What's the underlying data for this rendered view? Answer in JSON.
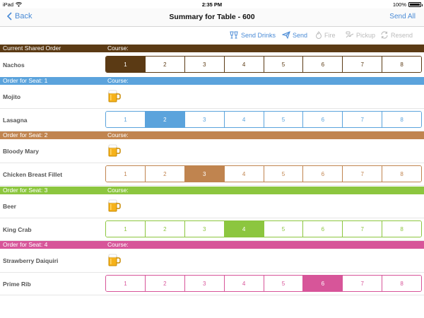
{
  "status_bar": {
    "device": "iPad",
    "time": "2:35 PM",
    "battery": "100%",
    "battery_level": 1.0
  },
  "nav": {
    "back_label": "Back",
    "title": "Summary for Table  - 600",
    "send_all_label": "Send All"
  },
  "toolbar": {
    "send_drinks": "Send Drinks",
    "send": "Send",
    "fire": "Fire",
    "pickup": "Pickup",
    "resend": "Resend"
  },
  "colors": {
    "shared": "#5b3a14",
    "seat1": "#5ba3dc",
    "seat2": "#c0844f",
    "seat3": "#8cc63f",
    "seat4": "#d75599",
    "accent": "#4a8bd6"
  },
  "sections": [
    {
      "label": "Current Shared Order",
      "course_label": "Course:",
      "items": [
        {
          "name": "Nachos",
          "courses": [
            "1",
            "2",
            "3",
            "4",
            "5",
            "6",
            "7",
            "8"
          ],
          "selected_course": "1"
        }
      ]
    },
    {
      "label": "Order for Seat: 1",
      "course_label": "Course:",
      "items": [
        {
          "name": "Mojito",
          "icon": "beer-mug-icon"
        },
        {
          "name": "Lasagna",
          "courses": [
            "1",
            "2",
            "3",
            "4",
            "5",
            "6",
            "7",
            "8"
          ],
          "selected_course": "2"
        }
      ]
    },
    {
      "label": "Order for Seat: 2",
      "course_label": "Course:",
      "items": [
        {
          "name": "Bloody Mary",
          "icon": "beer-mug-icon"
        },
        {
          "name": "Chicken Breast Fillet",
          "courses": [
            "1",
            "2",
            "3",
            "4",
            "5",
            "6",
            "7",
            "8"
          ],
          "selected_course": "3"
        }
      ]
    },
    {
      "label": "Order for Seat: 3",
      "course_label": "Course:",
      "items": [
        {
          "name": "Beer",
          "icon": "beer-mug-icon"
        },
        {
          "name": "King Crab",
          "courses": [
            "1",
            "2",
            "3",
            "4",
            "5",
            "6",
            "7",
            "8"
          ],
          "selected_course": "4"
        }
      ]
    },
    {
      "label": "Order for Seat: 4",
      "course_label": "Course:",
      "items": [
        {
          "name": "Strawberry Daiquiri",
          "icon": "beer-mug-icon"
        },
        {
          "name": "Prime Rib",
          "courses": [
            "1",
            "2",
            "3",
            "4",
            "5",
            "6",
            "7",
            "8"
          ],
          "selected_course": "6"
        }
      ]
    }
  ]
}
